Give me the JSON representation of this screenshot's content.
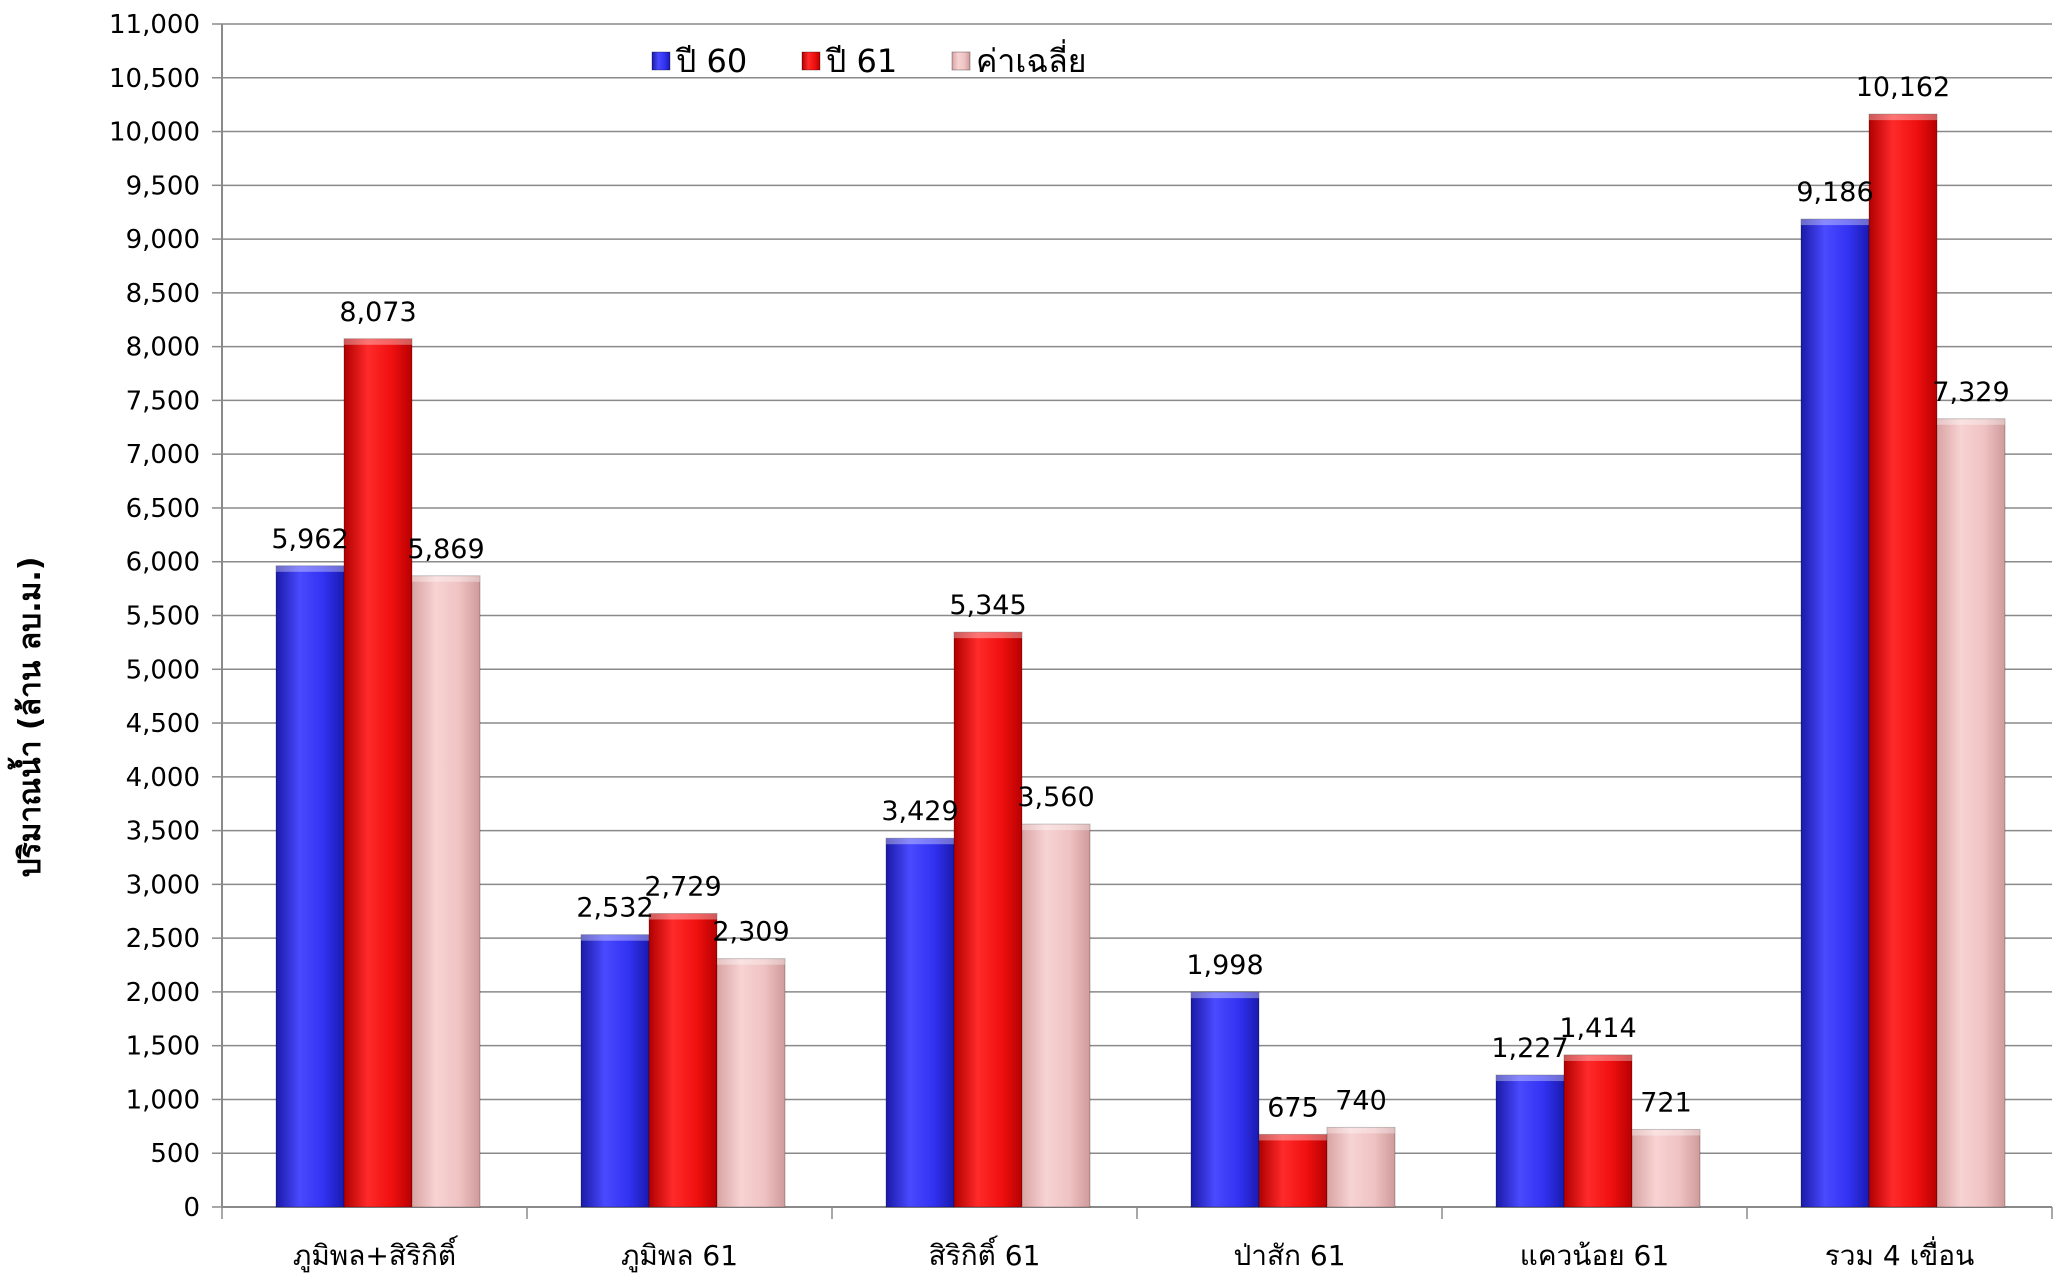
{
  "chart_data": {
    "type": "bar",
    "categories": [
      "ภูมิพล+สิริกิติ์",
      "ภูมิพล 61",
      "สิริกิติ์ 61",
      "ป่าสัก 61",
      "แควน้อย 61",
      "รวม 4 เขื่อน"
    ],
    "series": [
      {
        "name": "ปี 60",
        "values": [
          5962,
          2532,
          3429,
          1998,
          1227,
          9186
        ],
        "color": "#2b2bf0"
      },
      {
        "name": "ปี 61",
        "values": [
          8073,
          2729,
          5345,
          675,
          1414,
          10162
        ],
        "color": "#ee1111"
      },
      {
        "name": "ค่าเฉลี่ย",
        "values": [
          5869,
          2309,
          3560,
          740,
          721,
          7329
        ],
        "color": "#eebcbc"
      }
    ],
    "data_labels": [
      [
        "5,962",
        "2,532",
        "3,429",
        "1,998",
        "1,227",
        "9,186"
      ],
      [
        "8,073",
        "2,729",
        "5,345",
        "675",
        "1,414",
        "10,162"
      ],
      [
        "5,869",
        "2,309",
        "3,560",
        "740",
        "721",
        "7,329"
      ]
    ],
    "yticks": [
      0,
      500,
      1000,
      1500,
      2000,
      2500,
      3000,
      3500,
      4000,
      4500,
      5000,
      5500,
      6000,
      6500,
      7000,
      7500,
      8000,
      8500,
      9000,
      9500,
      10000,
      10500,
      11000
    ],
    "ytick_labels": [
      "0",
      "500",
      "1,000",
      "1,500",
      "2,000",
      "2,500",
      "3,000",
      "3,500",
      "4,000",
      "4,500",
      "5,000",
      "5,500",
      "6,000",
      "6,500",
      "7,000",
      "7,500",
      "8,000",
      "8,500",
      "9,000",
      "9,500",
      "10,000",
      "10,500",
      "11,000"
    ],
    "ylim": [
      0,
      11000
    ],
    "ylabel": "ปริมาณน้ำ (ล้าน ลบ.ม.)",
    "xlabel": "",
    "title": "",
    "grid": true,
    "legend_position": "top-center"
  }
}
